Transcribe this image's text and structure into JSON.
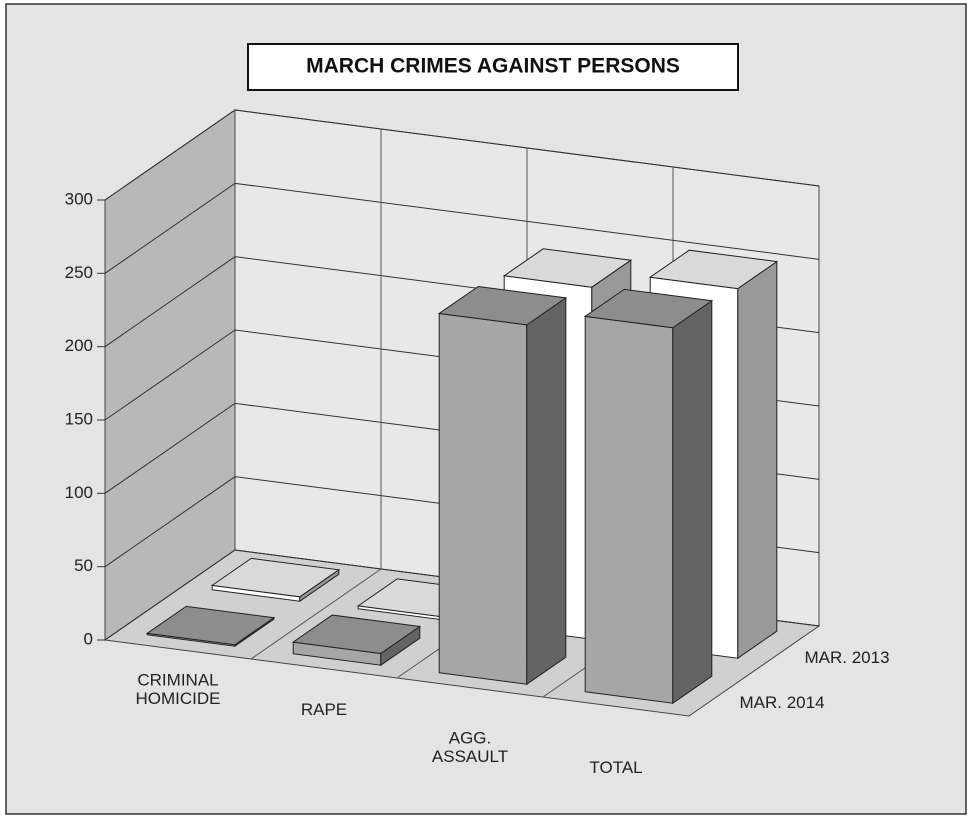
{
  "chart_data": {
    "type": "bar3d",
    "title": "MARCH CRIMES AGAINST PERSONS",
    "categories": [
      "CRIMINAL HOMICIDE",
      "RAPE",
      "AGG. ASSAULT",
      "TOTAL"
    ],
    "series": [
      {
        "name": "MAR. 2013",
        "color": "#ffffff",
        "values": [
          3,
          2,
          240,
          252
        ]
      },
      {
        "name": "MAR. 2014",
        "color": "#a6a6a6",
        "values": [
          1,
          8,
          245,
          256
        ]
      }
    ],
    "ylim": [
      0,
      300
    ],
    "yticks": [
      0,
      50,
      100,
      150,
      200,
      250,
      300
    ],
    "grid": true
  }
}
